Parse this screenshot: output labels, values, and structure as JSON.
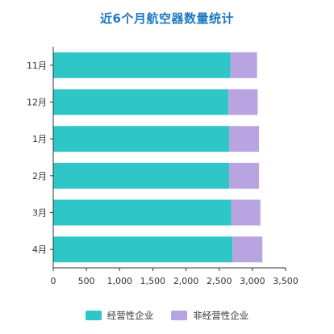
{
  "chart_data": {
    "type": "bar",
    "orientation": "horizontal",
    "stacked": true,
    "title": "近6个月航空器数量统计",
    "categories": [
      "11月",
      "12月",
      "1月",
      "2月",
      "3月",
      "4月"
    ],
    "series": [
      {
        "name": "经营性企业",
        "color": "#2ec6c6",
        "values": [
          2670,
          2640,
          2650,
          2650,
          2680,
          2700
        ]
      },
      {
        "name": "非经营性企业",
        "color": "#b8a4e0",
        "values": [
          400,
          440,
          450,
          450,
          440,
          450
        ]
      }
    ],
    "xlim": [
      0,
      3500
    ],
    "xticks": [
      0,
      500,
      1000,
      1500,
      2000,
      2500,
      3000,
      3500
    ],
    "xtick_labels": [
      "0",
      "500",
      "1,000",
      "1,500",
      "2,000",
      "2,500",
      "3,000",
      "3,500"
    ],
    "xlabel": "",
    "ylabel": "",
    "grid": false,
    "legend_position": "bottom"
  }
}
